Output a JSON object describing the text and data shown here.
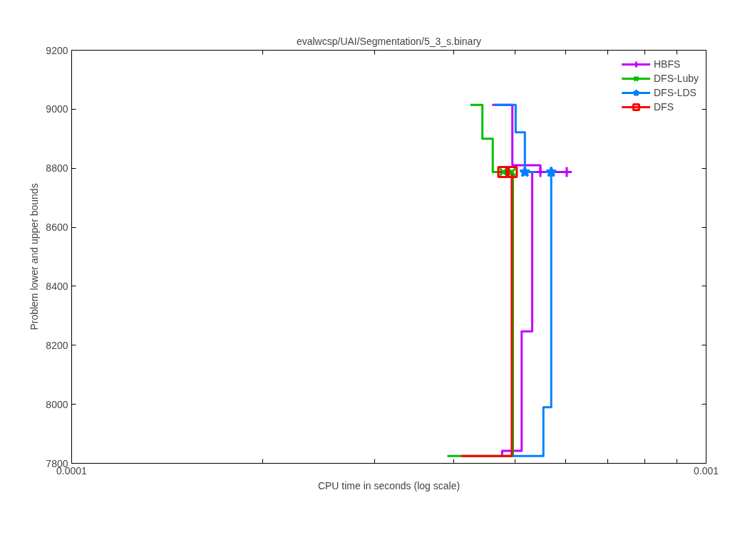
{
  "chart_data": {
    "type": "step",
    "title": "evalwcsp/UAI/Segmentation/5_3_s.binary",
    "xlabel": "CPU time in seconds (log scale)",
    "ylabel": "Problem lower and upper bounds",
    "log": "x",
    "xlim": [
      0.0001,
      0.001
    ],
    "xticks": [
      {
        "value": 0.0001,
        "label": "0.0001"
      },
      {
        "value": 0.0002,
        "label": null
      },
      {
        "value": 0.0003,
        "label": null
      },
      {
        "value": 0.0004,
        "label": null
      },
      {
        "value": 0.0005,
        "label": null
      },
      {
        "value": 0.0006,
        "label": null
      },
      {
        "value": 0.0007,
        "label": null
      },
      {
        "value": 0.0008,
        "label": null
      },
      {
        "value": 0.0009,
        "label": null
      },
      {
        "value": 0.001,
        "label": "0.001"
      }
    ],
    "ylim": [
      7800,
      9200
    ],
    "yticks": [
      7800,
      8000,
      8200,
      8400,
      8600,
      8800,
      9000,
      9200
    ],
    "grid": false,
    "legend": "top right",
    "line_style": "solid",
    "series": [
      {
        "name": "HBFS",
        "color": "#c000ff",
        "x": [
          0.00046,
          0.000495,
          0.000548,
          0.000603
        ],
        "values": [
          9015,
          8810,
          8787,
          8787
        ]
      },
      {
        "color": "#c000ff",
        "x": [
          0.000477,
          0.000477,
          0.000512,
          0.000532
        ],
        "values": [
          7825,
          7842,
          8247,
          8787
        ]
      },
      {
        "type": "scatter",
        "color": "#c000ff",
        "marker": "cross",
        "x": [
          0.000548,
          0.000603
        ],
        "values": [
          8787,
          8787
        ]
      },
      {
        "name": "DFS-Luby",
        "color": "#00c000",
        "x": [
          0.000425,
          0.000444,
          0.000461,
          0.000494
        ],
        "values": [
          9015,
          8900,
          8787,
          8787
        ]
      },
      {
        "color": "#00c000",
        "x": [
          0.000391,
          0.000496
        ],
        "values": [
          7825,
          8787
        ]
      },
      {
        "type": "scatter",
        "color": "#00c000",
        "marker": "x",
        "x": [
          0.000479,
          0.000494
        ],
        "values": [
          8787,
          8787
        ]
      },
      {
        "name": "DFS-LDS",
        "color": "#0080ff",
        "x": [
          0.000464,
          0.000501,
          0.000518,
          0.00057
        ],
        "values": [
          9015,
          8922,
          8787,
          8787
        ]
      },
      {
        "color": "#0080ff",
        "x": [
          0.000496,
          0.000554,
          0.00057
        ],
        "values": [
          7825,
          7990,
          8787
        ]
      },
      {
        "type": "scatter",
        "color": "#0080ff",
        "marker": "star",
        "x": [
          0.000518,
          0.00057
        ],
        "values": [
          8787,
          8787
        ]
      },
      {
        "name": "DFS",
        "color": "#ff0000",
        "x": [
          0.000472,
          0.000494
        ],
        "values": [
          8787,
          8787
        ]
      },
      {
        "color": "#ff0000",
        "x": [
          0.000411,
          0.000494
        ],
        "values": [
          7825,
          8787
        ]
      },
      {
        "type": "scatter",
        "color": "#ff0000",
        "marker": "square",
        "x": [
          0.000479,
          0.000494
        ],
        "values": [
          8787,
          8787
        ]
      }
    ]
  }
}
